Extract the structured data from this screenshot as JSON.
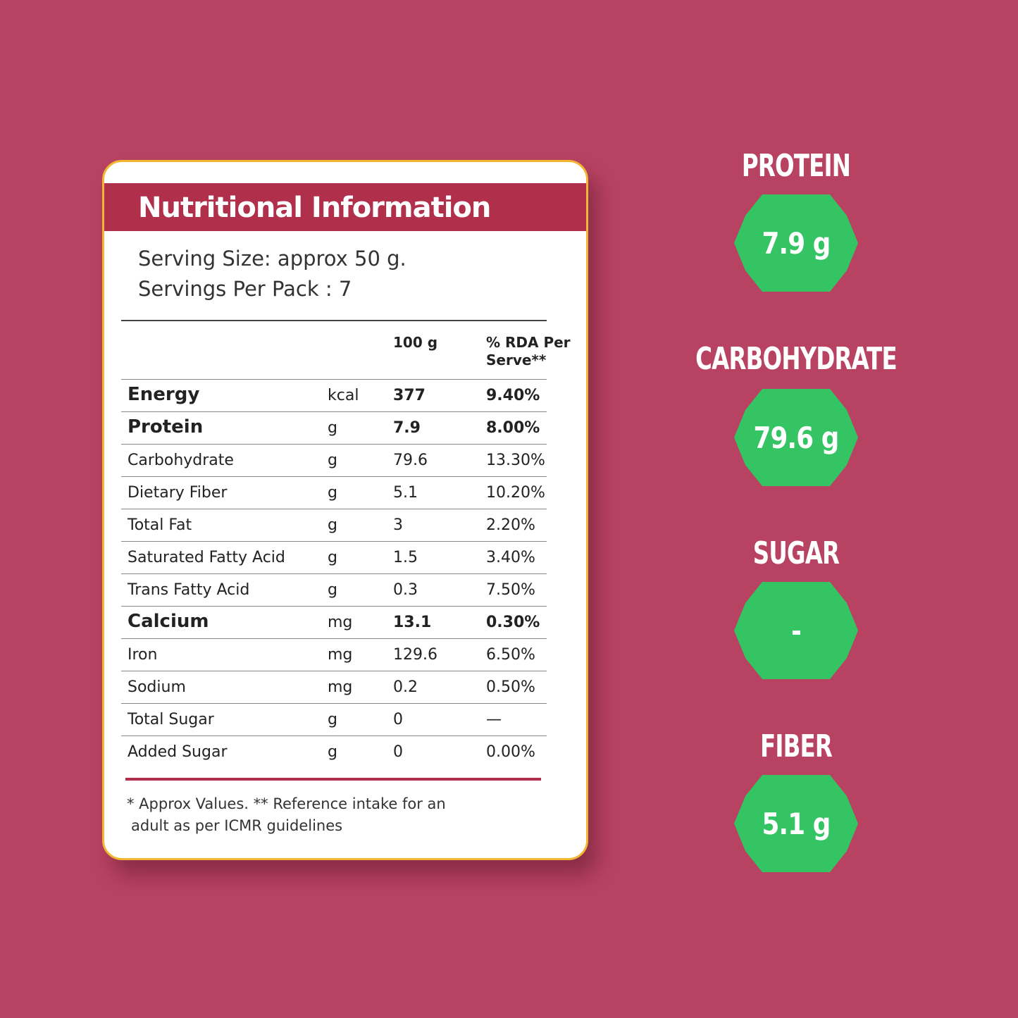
{
  "panel": {
    "title": "Nutritional Information",
    "serving_size": "Serving Size: approx 50 g.",
    "servings_per_pack": "Servings Per Pack : 7",
    "col_100g": "100 g",
    "col_rda_line1": "% RDA Per",
    "col_rda_line2": "Serve**",
    "rows": [
      {
        "name": "Energy",
        "unit": "kcal",
        "value": "377",
        "rda": "9.40%",
        "bold": true
      },
      {
        "name": "Protein",
        "unit": "g",
        "value": "7.9",
        "rda": "8.00%",
        "bold": true
      },
      {
        "name": "Carbohydrate",
        "unit": "g",
        "value": "79.6",
        "rda": "13.30%",
        "bold": false
      },
      {
        "name": "Dietary Fiber",
        "unit": "g",
        "value": "5.1",
        "rda": "10.20%",
        "bold": false
      },
      {
        "name": "Total Fat",
        "unit": "g",
        "value": "3",
        "rda": "2.20%",
        "bold": false
      },
      {
        "name": "Saturated Fatty Acid",
        "unit": "g",
        "value": "1.5",
        "rda": "3.40%",
        "bold": false
      },
      {
        "name": "Trans Fatty Acid",
        "unit": "g",
        "value": "0.3",
        "rda": "7.50%",
        "bold": false
      },
      {
        "name": "Calcium",
        "unit": "mg",
        "value": "13.1",
        "rda": "0.30%",
        "bold": true
      },
      {
        "name": "Iron",
        "unit": "mg",
        "value": "129.6",
        "rda": "6.50%",
        "bold": false
      },
      {
        "name": "Sodium",
        "unit": "mg",
        "value": "0.2",
        "rda": "0.50%",
        "bold": false
      },
      {
        "name": "Total Sugar",
        "unit": "g",
        "value": "0",
        "rda": "—",
        "bold": false
      },
      {
        "name": "Added Sugar",
        "unit": "g",
        "value": "0",
        "rda": "0.00%",
        "bold": false
      }
    ],
    "footnote_line1": "* Approx Values. ** Reference intake for an",
    "footnote_line2": "adult as per ICMR guidelines"
  },
  "badges": [
    {
      "label": "PROTEIN",
      "value": "7.9 g"
    },
    {
      "label": "CARBOHYDRATE",
      "value": "79.6 g"
    },
    {
      "label": "SUGAR",
      "value": "-"
    },
    {
      "label": "FIBER",
      "value": "5.1 g"
    }
  ],
  "colors": {
    "background": "#b84262",
    "header": "#b02f4b",
    "card_border": "#f2b630",
    "badge_green": "#34c463"
  }
}
